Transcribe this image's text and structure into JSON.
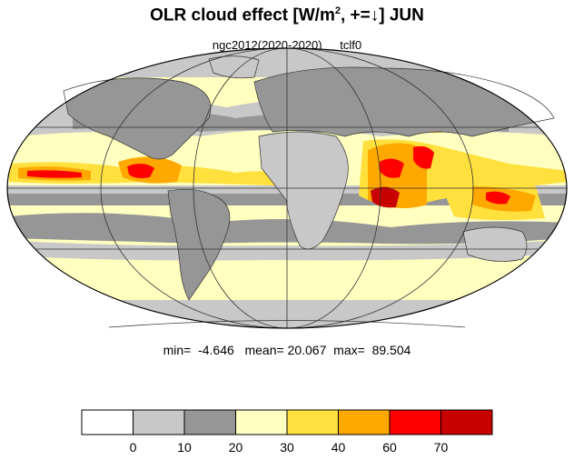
{
  "title": {
    "main": "OLR cloud effect [W/m",
    "sup": "2",
    "rest": ", +=↓]  JUN"
  },
  "subtitle": {
    "left": "ngc2012(2020-2020)",
    "right": "tclf0"
  },
  "stats": {
    "min_label": "min=",
    "min_value": "-4.646",
    "mean_label": "mean=",
    "mean_value": "20.067",
    "max_label": "max=",
    "max_value": "89.504"
  },
  "colorbar": {
    "ticks": [
      "0",
      "10",
      "20",
      "30",
      "40",
      "60",
      "70"
    ],
    "colors": [
      "#ffffff",
      "#c8c8c8",
      "#969696",
      "#ffffc0",
      "#ffe03c",
      "#ffa800",
      "#ff0000",
      "#c80000"
    ]
  },
  "map": {
    "projection": "mollweide",
    "ocean_background": "#ffffc0",
    "coast_color": "#333333"
  }
}
